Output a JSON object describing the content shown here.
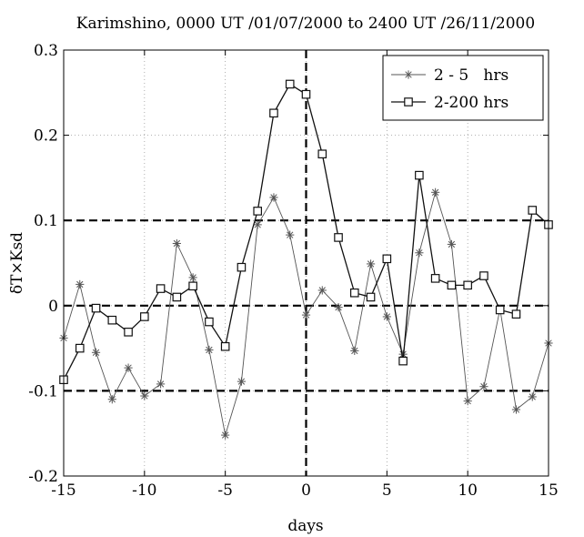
{
  "chart_data": {
    "type": "line",
    "title": "Karimshino,  0000 UT /01/07/2000  to  2400 UT /26/11/2000",
    "xlabel": "days",
    "ylabel": "δT×Ksd",
    "xlim": [
      -15,
      15
    ],
    "ylim": [
      -0.2,
      0.3
    ],
    "xticks": [
      -15,
      -10,
      -5,
      0,
      5,
      10,
      15
    ],
    "yticks": [
      -0.2,
      -0.1,
      0,
      0.1,
      0.2,
      0.3
    ],
    "xtick_labels": [
      "-15",
      "-10",
      "-5",
      "0",
      "5",
      "10",
      "15"
    ],
    "ytick_labels": [
      "-0.2",
      "-0.1",
      "0",
      "0.1",
      "0.2",
      "0.3"
    ],
    "grid": "dotted",
    "legend": "top-right",
    "reference_lines": {
      "horizontal": [
        -0.1,
        0,
        0.1
      ],
      "vertical": [
        0
      ]
    },
    "series": [
      {
        "name": "2 - 5   hrs",
        "marker": "asterisk",
        "color": "#555555",
        "x": [
          -15,
          -14,
          -13,
          -12,
          -11,
          -10,
          -9,
          -8,
          -7,
          -6,
          -5,
          -4,
          -3,
          -2,
          -1,
          0,
          1,
          2,
          3,
          4,
          5,
          6,
          7,
          8,
          9,
          10,
          11,
          12,
          13,
          14,
          15
        ],
        "y": [
          -0.038,
          0.025,
          -0.055,
          -0.11,
          -0.073,
          -0.106,
          -0.092,
          0.073,
          0.033,
          -0.052,
          -0.152,
          -0.089,
          0.095,
          0.127,
          0.083,
          -0.011,
          0.018,
          -0.002,
          -0.053,
          0.049,
          -0.013,
          -0.057,
          0.062,
          0.133,
          0.072,
          -0.112,
          -0.095,
          -0.004,
          -0.122,
          -0.107,
          -0.044
        ]
      },
      {
        "name": "2-200 hrs",
        "marker": "square",
        "color": "#111111",
        "x": [
          -15,
          -14,
          -13,
          -12,
          -11,
          -10,
          -9,
          -8,
          -7,
          -6,
          -5,
          -4,
          -3,
          -2,
          -1,
          0,
          1,
          2,
          3,
          4,
          5,
          6,
          7,
          8,
          9,
          10,
          11,
          12,
          13,
          14,
          15
        ],
        "y": [
          -0.087,
          -0.05,
          -0.003,
          -0.017,
          -0.031,
          -0.013,
          0.02,
          0.01,
          0.023,
          -0.019,
          -0.048,
          0.045,
          0.111,
          0.226,
          0.26,
          0.248,
          0.178,
          0.08,
          0.015,
          0.01,
          0.055,
          -0.065,
          0.153,
          0.032,
          0.024,
          0.024,
          0.035,
          -0.005,
          -0.01,
          0.112,
          0.095
        ]
      }
    ]
  }
}
